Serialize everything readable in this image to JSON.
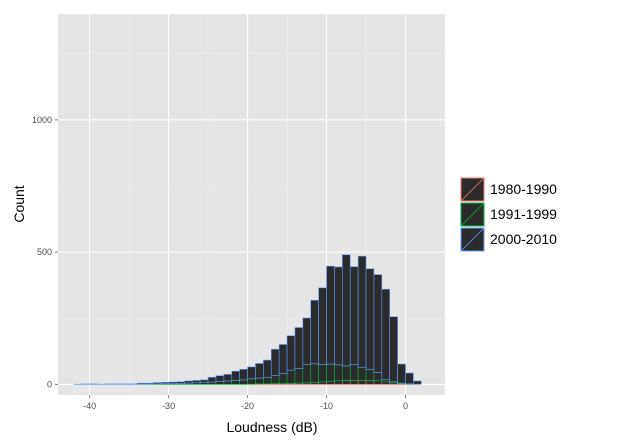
{
  "chart_data": {
    "type": "bar",
    "stacked": true,
    "xlabel": "Loudness (dB)",
    "ylabel": "Count",
    "xlim": [
      -44,
      5
    ],
    "ylim": [
      -40,
      1400
    ],
    "xticks": [
      -40,
      -30,
      -20,
      -10,
      0
    ],
    "yticks": [
      0,
      500,
      1000
    ],
    "grid": true,
    "legend_position": "right",
    "bin_edges": [
      -42,
      -41,
      -40,
      -39,
      -38,
      -37,
      -36,
      -35,
      -34,
      -33,
      -32,
      -31,
      -30,
      -29,
      -28,
      -27,
      -26,
      -25,
      -24,
      -23,
      -22,
      -21,
      -20,
      -19,
      -18,
      -17,
      -16,
      -15,
      -14,
      -13,
      -12,
      -11,
      -10,
      -9,
      -8,
      -7,
      -6,
      -5,
      -4,
      -3,
      -2,
      -1,
      0,
      1,
      2,
      3
    ],
    "series": [
      {
        "name": "1980-1990",
        "fill": "#2b2b2b",
        "outline": "#f8766d",
        "values": [
          0,
          0,
          0,
          0,
          0,
          0,
          0,
          0,
          0,
          0,
          0,
          0,
          0,
          0,
          0,
          0,
          0,
          0,
          0,
          0,
          0,
          0,
          1,
          2,
          2,
          3,
          3,
          4,
          5,
          6,
          8,
          10,
          12,
          14,
          15,
          15,
          15,
          15,
          14,
          10,
          6,
          3,
          1,
          1,
          0
        ]
      },
      {
        "name": "1991-1999",
        "fill": "#2b2b2b",
        "outline": "#00ba38",
        "values": [
          0,
          0,
          0,
          0,
          0,
          0,
          0,
          0,
          1,
          1,
          2,
          3,
          3,
          4,
          5,
          6,
          7,
          9,
          11,
          13,
          15,
          17,
          20,
          22,
          25,
          30,
          38,
          50,
          55,
          70,
          70,
          65,
          65,
          60,
          55,
          60,
          50,
          42,
          31,
          8,
          4,
          2,
          1,
          0,
          0
        ]
      },
      {
        "name": "2000-2010",
        "fill": "#2b2b2b",
        "outline": "#619cff",
        "values": [
          1,
          2,
          2,
          1,
          2,
          2,
          2,
          2,
          4,
          4,
          5,
          5,
          6,
          6,
          8,
          9,
          10,
          18,
          22,
          25,
          35,
          40,
          45,
          55,
          65,
          100,
          110,
          130,
          155,
          175,
          240,
          290,
          370,
          370,
          420,
          370,
          420,
          380,
          370,
          342,
          246,
          72,
          41,
          12,
          0
        ]
      }
    ]
  }
}
